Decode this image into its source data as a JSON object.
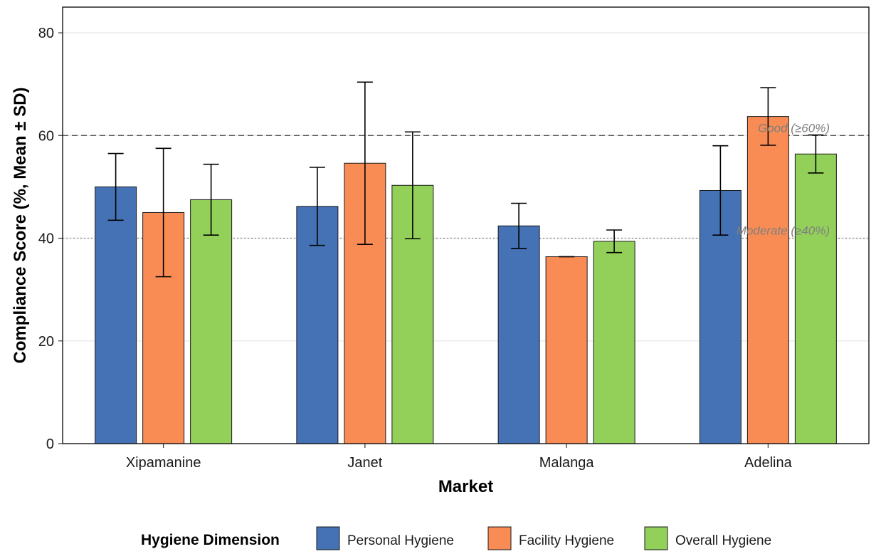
{
  "chart_data": {
    "type": "bar",
    "xlabel": "Market",
    "ylabel": "Compliance Score (%, Mean ± SD)",
    "ylim": [
      0,
      85
    ],
    "yticks": [
      0,
      20,
      40,
      60,
      80
    ],
    "grid": "horizontal major",
    "categories": [
      "Xipamanine",
      "Janet",
      "Malanga",
      "Adelina"
    ],
    "series": [
      {
        "name": "Personal Hygiene",
        "color": "#4472b5",
        "values": [
          50.0,
          46.2,
          42.4,
          49.3
        ],
        "sd": [
          6.5,
          7.6,
          4.4,
          8.7
        ]
      },
      {
        "name": "Facility Hygiene",
        "color": "#f98c55",
        "values": [
          45.0,
          54.6,
          36.4,
          63.7
        ],
        "sd": [
          12.5,
          15.8,
          0.0,
          5.6
        ]
      },
      {
        "name": "Overall Hygiene",
        "color": "#92d05a",
        "values": [
          47.5,
          50.3,
          39.4,
          56.4
        ],
        "sd": [
          6.9,
          10.4,
          2.2,
          3.7
        ]
      }
    ],
    "reference_lines": [
      {
        "value": 60,
        "label": "Good (≥60%)",
        "style": "dashed"
      },
      {
        "value": 40,
        "label": "Moderate (≥40%)",
        "style": "dotted"
      }
    ],
    "legend": {
      "title": "Hygiene Dimension",
      "position": "bottom"
    }
  }
}
